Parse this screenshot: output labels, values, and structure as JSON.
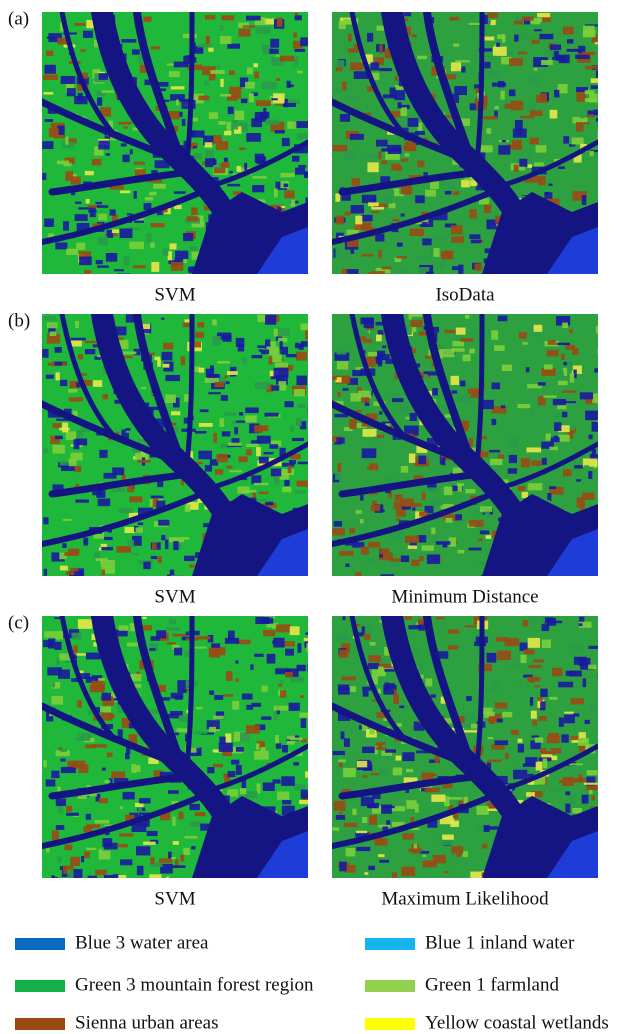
{
  "panels": [
    {
      "label": "(a)",
      "images": [
        {
          "caption": "SVM"
        },
        {
          "caption": "IsoData"
        }
      ]
    },
    {
      "label": "(b)",
      "images": [
        {
          "caption": "SVM"
        },
        {
          "caption": "Minimum Distance"
        }
      ]
    },
    {
      "label": "(c)",
      "images": [
        {
          "caption": "SVM"
        },
        {
          "caption": "Maximum Likelihood"
        }
      ]
    }
  ],
  "legend": [
    {
      "text": "Blue 3 water area",
      "color": "#0a6cc0"
    },
    {
      "text": "Blue 1 inland water",
      "color": "#16b4f0"
    },
    {
      "text": "Green 3 mountain forest region",
      "color": "#12b04a"
    },
    {
      "text": "Green 1 farmland",
      "color": "#92d050"
    },
    {
      "text": "Sienna urban areas",
      "color": "#9a4a10"
    },
    {
      "text": "Yellow coastal wetlands",
      "color": "#ffff00"
    }
  ]
}
